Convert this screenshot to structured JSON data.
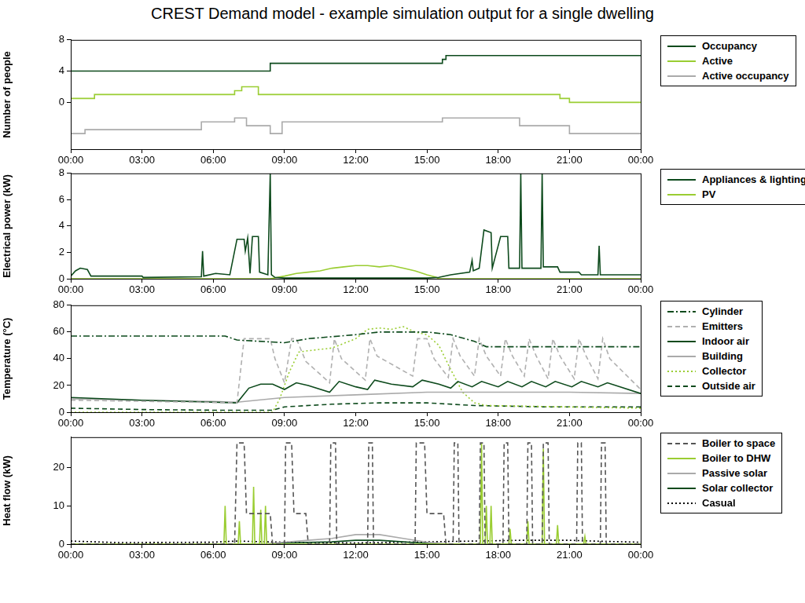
{
  "title": "CREST Demand model - example simulation output for a single dwelling",
  "chart_data": [
    {
      "type": "step",
      "y_label": "Number of people",
      "xlim": [
        0,
        24
      ],
      "xticks": [
        {
          "value": 0,
          "label": "00:00"
        },
        {
          "value": 3,
          "label": "03:00"
        },
        {
          "value": 6,
          "label": "06:00"
        },
        {
          "value": 9,
          "label": "09:00"
        },
        {
          "value": 12,
          "label": "12:00"
        },
        {
          "value": 15,
          "label": "15:00"
        },
        {
          "value": 18,
          "label": "18:00"
        },
        {
          "value": 21,
          "label": "21:00"
        },
        {
          "value": 24,
          "label": "00:00"
        }
      ],
      "ylim": [
        -6,
        8
      ],
      "yticks": [
        0,
        4,
        8
      ],
      "grid": false,
      "legend": "right",
      "series": [
        {
          "name": "Occupancy",
          "color": "#0d4a1c",
          "line_style": "solid",
          "x": [
            0,
            8.4,
            15.65,
            15.8,
            19.0,
            24
          ],
          "values": [
            6,
            4,
            5,
            5.5,
            6,
            6
          ]
        },
        {
          "name": "Active",
          "color": "#9acd32",
          "line_style": "solid",
          "x": [
            0,
            1.0,
            6.9,
            7.2,
            7.9,
            20.6,
            21.0,
            23.0,
            24
          ],
          "values": [
            1,
            0.5,
            1,
            1.5,
            2,
            1,
            0.5,
            0,
            0
          ]
        },
        {
          "name": "Active occupancy",
          "color": "#aaaaaa",
          "line_style": "solid",
          "x": [
            0,
            0.6,
            5.5,
            6.9,
            7.4,
            8.4,
            8.9,
            15.65,
            17.7,
            18.9,
            21.0,
            22.6,
            24
          ],
          "values": [
            -3,
            -4,
            -3.5,
            -2.5,
            -2,
            -3,
            -4,
            -2.5,
            -2,
            -2,
            -3,
            -4,
            -4
          ]
        }
      ]
    },
    {
      "type": "line",
      "y_label": "Electrical power (kW)",
      "xlim": [
        0,
        24
      ],
      "xticks": [
        {
          "value": 0,
          "label": "00:00"
        },
        {
          "value": 3,
          "label": "03:00"
        },
        {
          "value": 6,
          "label": "06:00"
        },
        {
          "value": 9,
          "label": "09:00"
        },
        {
          "value": 12,
          "label": "12:00"
        },
        {
          "value": 15,
          "label": "15:00"
        },
        {
          "value": 18,
          "label": "18:00"
        },
        {
          "value": 21,
          "label": "21:00"
        },
        {
          "value": 24,
          "label": "00:00"
        }
      ],
      "ylim": [
        0,
        8
      ],
      "yticks": [
        0,
        2,
        4,
        6,
        8
      ],
      "grid": false,
      "legend": "right",
      "series": [
        {
          "name": "Appliances & lighting",
          "color": "#0d4a1c",
          "line_style": "solid",
          "x": [
            0,
            0.2,
            0.4,
            0.7,
            0.85,
            3.0,
            3.05,
            5.5,
            5.55,
            5.6,
            6.1,
            6.7,
            7.0,
            7.3,
            7.35,
            7.45,
            7.55,
            7.65,
            7.9,
            7.95,
            8.3,
            8.4,
            8.45,
            8.6,
            9,
            12,
            15,
            15.5,
            16,
            16.8,
            16.9,
            16.95,
            17.2,
            17.4,
            17.7,
            17.75,
            18.1,
            18.4,
            18.45,
            18.9,
            18.95,
            19.0,
            19.8,
            19.85,
            19.9,
            20.5,
            20.6,
            21.4,
            21.5,
            22.2,
            22.25,
            22.3,
            24
          ],
          "values": [
            0.2,
            0.6,
            0.8,
            0.7,
            0.2,
            0.2,
            0.1,
            0.15,
            2.1,
            0.2,
            0.4,
            0.3,
            3.0,
            3.0,
            2.1,
            3.1,
            0.4,
            3.2,
            3.2,
            0.5,
            0.3,
            8,
            0.3,
            0.1,
            0.05,
            0.05,
            0.05,
            0.1,
            0.3,
            0.5,
            1.4,
            0.6,
            0.8,
            3.7,
            3.5,
            0.8,
            3.2,
            3.2,
            0.8,
            0.8,
            8,
            0.8,
            0.8,
            8,
            0.9,
            0.9,
            0.5,
            0.5,
            0.3,
            0.3,
            2.5,
            0.3,
            0.3
          ]
        },
        {
          "name": "PV",
          "color": "#9acd32",
          "line_style": "solid",
          "x": [
            0,
            8.4,
            9,
            9.5,
            10,
            10.5,
            11,
            11.5,
            12,
            12.5,
            13,
            13.5,
            14,
            14.5,
            15,
            15.4,
            15.5,
            24
          ],
          "values": [
            0,
            0,
            0.2,
            0.4,
            0.5,
            0.6,
            0.8,
            0.9,
            1.0,
            1.0,
            0.9,
            1.0,
            0.8,
            0.6,
            0.3,
            0.1,
            0,
            0
          ]
        }
      ]
    },
    {
      "type": "line",
      "y_label": "Temperature (°C)",
      "xlim": [
        0,
        24
      ],
      "xticks": [
        {
          "value": 0,
          "label": "00:00"
        },
        {
          "value": 3,
          "label": "03:00"
        },
        {
          "value": 6,
          "label": "06:00"
        },
        {
          "value": 9,
          "label": "09:00"
        },
        {
          "value": 12,
          "label": "12:00"
        },
        {
          "value": 15,
          "label": "15:00"
        },
        {
          "value": 18,
          "label": "18:00"
        },
        {
          "value": 21,
          "label": "21:00"
        },
        {
          "value": 24,
          "label": "00:00"
        }
      ],
      "ylim": [
        0,
        80
      ],
      "yticks": [
        0,
        20,
        40,
        60,
        80
      ],
      "grid": false,
      "legend": "right",
      "series": [
        {
          "name": "Cylinder",
          "color": "#0d4a1c",
          "line_style": "dashdot",
          "x": [
            0,
            6.5,
            7,
            9,
            10,
            12,
            13,
            15,
            16,
            17,
            17.5,
            24
          ],
          "values": [
            57,
            57,
            54,
            52,
            55,
            58,
            60,
            60,
            58,
            53,
            49,
            49
          ]
        },
        {
          "name": "Emitters",
          "color": "#b0b0b0",
          "line_style": "dashed",
          "x": [
            0,
            7.0,
            7.3,
            8.4,
            8.6,
            9.0,
            9.3,
            9.5,
            9.9,
            10.9,
            11.1,
            11.4,
            12.4,
            12.6,
            12.9,
            14.4,
            14.6,
            15.0,
            15.3,
            15.9,
            16.1,
            16.4,
            17.0,
            17.2,
            17.5,
            18.1,
            18.3,
            18.6,
            19.1,
            19.3,
            19.6,
            20.1,
            20.3,
            20.6,
            21.2,
            21.4,
            21.7,
            22.2,
            22.4,
            22.7,
            24
          ],
          "values": [
            9,
            7,
            55,
            55,
            40,
            22,
            55,
            55,
            38,
            22,
            55,
            40,
            24,
            55,
            42,
            27,
            55,
            55,
            40,
            26,
            55,
            42,
            27,
            55,
            42,
            27,
            55,
            42,
            27,
            55,
            42,
            25,
            55,
            42,
            25,
            55,
            42,
            25,
            55,
            40,
            17
          ]
        },
        {
          "name": "Indoor air",
          "color": "#0d4a1c",
          "line_style": "solid",
          "x": [
            0,
            3,
            6,
            7,
            7.5,
            8,
            8.5,
            9,
            9.5,
            10,
            10.9,
            11.3,
            12,
            12.5,
            12.8,
            13.5,
            14.4,
            14.8,
            15.5,
            16,
            16.3,
            16.9,
            17.3,
            18,
            18.4,
            19,
            19.4,
            20,
            20.4,
            21.1,
            21.5,
            22.2,
            22.6,
            24
          ],
          "values": [
            11,
            9,
            7.5,
            7,
            18,
            21,
            21,
            17,
            22,
            20,
            15,
            23,
            19,
            17,
            24,
            21,
            19,
            24,
            21,
            18,
            23,
            19,
            23,
            19,
            23,
            19,
            23,
            19,
            23,
            19,
            23,
            19,
            22,
            14
          ]
        },
        {
          "name": "Building",
          "color": "#aaaaaa",
          "line_style": "solid",
          "x": [
            0,
            3,
            6,
            7,
            9,
            12,
            15,
            18,
            21,
            24
          ],
          "values": [
            10,
            9,
            8,
            7.5,
            11,
            13,
            15,
            15,
            15,
            14
          ]
        },
        {
          "name": "Collector",
          "color": "#9acd32",
          "line_style": "dotted",
          "x": [
            0,
            8.5,
            8.8,
            9.2,
            9.6,
            10,
            11,
            12,
            12.5,
            13,
            13.5,
            14,
            14.5,
            15,
            15.5,
            16,
            16.5,
            17,
            17.5,
            24
          ],
          "values": [
            0,
            0,
            10,
            30,
            45,
            46,
            48,
            55,
            62,
            63,
            62,
            64,
            60,
            58,
            50,
            32,
            15,
            7,
            5,
            3
          ]
        },
        {
          "name": "Outside air",
          "color": "#0d4a1c",
          "line_style": "dashed",
          "x": [
            0,
            3,
            6,
            8.5,
            9,
            11,
            13,
            15,
            17,
            20,
            24
          ],
          "values": [
            3,
            2,
            1.5,
            1.5,
            4,
            6,
            7,
            7,
            5,
            4,
            4
          ]
        }
      ]
    },
    {
      "type": "line",
      "y_label": "Heat flow (kW)",
      "xlim": [
        0,
        24
      ],
      "xticks": [
        {
          "value": 0,
          "label": "00:00"
        },
        {
          "value": 3,
          "label": "03:00"
        },
        {
          "value": 6,
          "label": "06:00"
        },
        {
          "value": 9,
          "label": "09:00"
        },
        {
          "value": 12,
          "label": "12:00"
        },
        {
          "value": 15,
          "label": "15:00"
        },
        {
          "value": 18,
          "label": "18:00"
        },
        {
          "value": 21,
          "label": "21:00"
        },
        {
          "value": 24,
          "label": "00:00"
        }
      ],
      "ylim": [
        0,
        28
      ],
      "yticks": [
        0,
        10,
        20
      ],
      "grid": false,
      "legend": "right",
      "series": [
        {
          "name": "Boiler to space",
          "color": "#555555",
          "line_style": "dashed",
          "x": [
            0,
            6.9,
            7.0,
            7.3,
            7.4,
            8.4,
            8.5,
            9.0,
            9.05,
            9.3,
            9.4,
            9.9,
            10.0,
            10.9,
            10.95,
            11.15,
            11.2,
            12.5,
            12.55,
            12.7,
            12.75,
            14.5,
            14.55,
            14.9,
            15.0,
            15.7,
            15.8,
            16.1,
            16.15,
            16.3,
            16.35,
            17.2,
            17.25,
            17.4,
            17.45,
            18.2,
            18.25,
            18.4,
            18.45,
            19.2,
            19.25,
            19.4,
            19.45,
            19.85,
            19.9,
            20.1,
            20.15,
            21.3,
            21.35,
            21.5,
            21.55,
            22.3,
            22.35,
            22.5,
            22.55,
            24
          ],
          "values": [
            0,
            0,
            26.5,
            26.5,
            8,
            8,
            0,
            0,
            26.5,
            26.5,
            8,
            8,
            0,
            0,
            26.5,
            26.5,
            0,
            0,
            26.5,
            26.5,
            0,
            0,
            26.5,
            26.5,
            8,
            8,
            0,
            0,
            26.5,
            26.5,
            0,
            0,
            26.5,
            26.5,
            0,
            0,
            26.5,
            26.5,
            0,
            0,
            26.5,
            26.5,
            0,
            0,
            26.5,
            26.5,
            0,
            0,
            26.5,
            26.5,
            0,
            0,
            26.5,
            26.5,
            0,
            0
          ]
        },
        {
          "name": "Boiler to DHW",
          "color": "#9acd32",
          "line_style": "solid",
          "x": [
            0,
            6.45,
            6.5,
            6.55,
            7.05,
            7.1,
            7.15,
            7.65,
            7.7,
            7.75,
            7.95,
            8.0,
            8.05,
            8.15,
            8.2,
            8.25,
            17.25,
            17.3,
            17.35,
            17.45,
            17.5,
            17.55,
            17.65,
            17.7,
            17.75,
            18.45,
            18.5,
            18.55,
            19.2,
            19.25,
            19.3,
            19.85,
            19.9,
            19.95,
            20.45,
            20.5,
            20.55,
            21.6,
            21.65,
            21.7,
            24
          ],
          "values": [
            0,
            0,
            10,
            0,
            0,
            6,
            0,
            0,
            15,
            0,
            0,
            9,
            0,
            0,
            10,
            0,
            0,
            26.5,
            0,
            0,
            10,
            0,
            0,
            10,
            0,
            0,
            4,
            0,
            0,
            6,
            0,
            0,
            25,
            0,
            0,
            5,
            0,
            0,
            2,
            0,
            0
          ]
        },
        {
          "name": "Passive solar",
          "color": "#aaaaaa",
          "line_style": "solid",
          "x": [
            0,
            8,
            9,
            10,
            11,
            12,
            13,
            14,
            15,
            16,
            24
          ],
          "values": [
            0,
            0,
            0.5,
            1,
            1.5,
            2.5,
            2.5,
            1.5,
            0.5,
            0,
            0
          ]
        },
        {
          "name": "Solar collector",
          "color": "#0d4a1c",
          "line_style": "solid",
          "x": [
            0,
            8.5,
            9,
            11,
            12,
            13,
            14,
            15,
            15.5,
            24
          ],
          "values": [
            0,
            0,
            0.3,
            0.6,
            1,
            1,
            0.6,
            0.2,
            0,
            0
          ]
        },
        {
          "name": "Casual",
          "color": "#000000",
          "line_style": "dotted",
          "x": [
            0,
            1,
            2,
            6,
            7,
            9,
            12,
            17,
            19,
            21,
            22,
            24
          ],
          "values": [
            0.8,
            0.6,
            0.4,
            0.5,
            0.8,
            0.5,
            0.3,
            0.8,
            1.0,
            1.0,
            0.8,
            0.5
          ]
        }
      ]
    }
  ]
}
